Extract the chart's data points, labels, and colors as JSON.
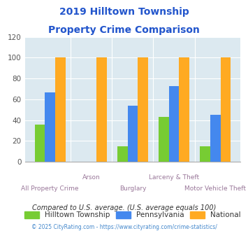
{
  "title_line1": "2019 Hilltown Township",
  "title_line2": "Property Crime Comparison",
  "categories": [
    "All Property Crime",
    "Arson",
    "Burglary",
    "Larceny & Theft",
    "Motor Vehicle Theft"
  ],
  "hilltown": [
    36,
    0,
    15,
    43,
    15
  ],
  "pennsylvania": [
    67,
    0,
    54,
    73,
    45
  ],
  "national": [
    100,
    100,
    100,
    100,
    100
  ],
  "color_hilltown": "#77cc33",
  "color_pennsylvania": "#4488ee",
  "color_national": "#ffaa22",
  "ylim": [
    0,
    120
  ],
  "yticks": [
    0,
    20,
    40,
    60,
    80,
    100,
    120
  ],
  "legend_labels": [
    "Hilltown Township",
    "Pennsylvania",
    "National"
  ],
  "footnote1": "Compared to U.S. average. (U.S. average equals 100)",
  "footnote2": "© 2025 CityRating.com - https://www.cityrating.com/crime-statistics/",
  "bg_color": "#dce9f0",
  "title_color": "#2255cc",
  "xlabel_color": "#997799",
  "footnote1_color": "#333333",
  "footnote2_color": "#4488cc"
}
